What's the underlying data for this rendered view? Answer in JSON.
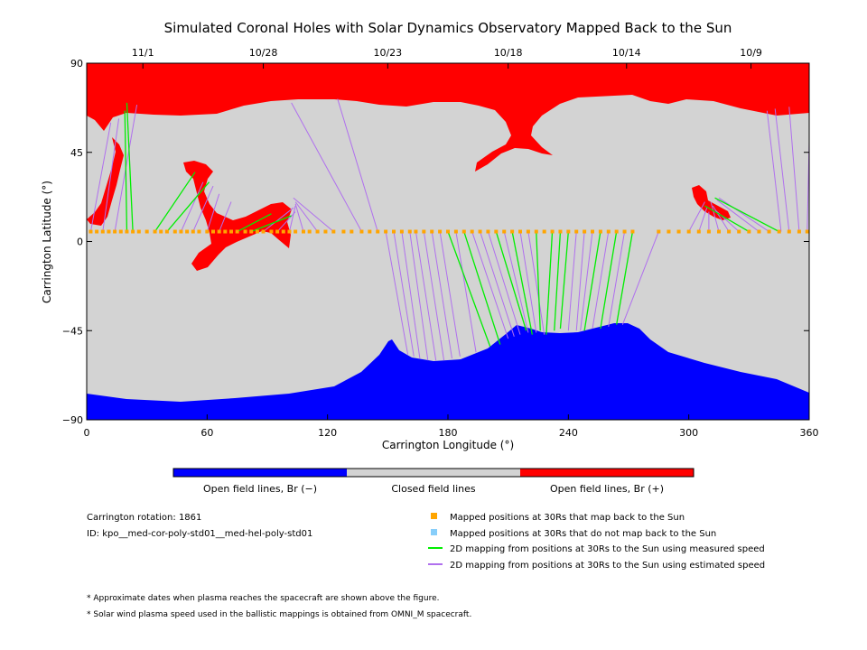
{
  "title": "Simulated Coronal Holes with Solar Dynamics Observatory Mapped Back to the Sun",
  "chart_data": {
    "type": "scatter",
    "title": "Simulated Coronal Holes with Solar Dynamics Observatory Mapped Back to the Sun",
    "xlabel": "Carrington Longitude (°)",
    "ylabel": "Carrington Latitude (°)",
    "xlim": [
      0,
      360
    ],
    "ylim": [
      -90,
      90
    ],
    "x_ticks": [
      0,
      60,
      120,
      180,
      240,
      300,
      360
    ],
    "y_ticks": [
      -90,
      -45,
      0,
      45,
      90
    ],
    "y_tick_labels": [
      "−90",
      "−45",
      "0",
      "45",
      "90"
    ],
    "top_axis_dates": [
      {
        "label": "11/1",
        "lon": 28
      },
      {
        "label": "10/28",
        "lon": 88
      },
      {
        "label": "10/23",
        "lon": 150
      },
      {
        "label": "10/18",
        "lon": 210
      },
      {
        "label": "10/14",
        "lon": 269
      },
      {
        "label": "10/9",
        "lon": 331
      }
    ],
    "colors": {
      "open_negative": "#0000ff",
      "closed": "#d3d3d3",
      "open_positive": "#ff0000",
      "mapped_point": "#ffa500",
      "unmapped_point": "#87cefa",
      "measured_speed_line": "#00ee00",
      "estimated_speed_line": "#b070ee"
    },
    "footprint_lat": 5,
    "footprints_lon": [
      2,
      5,
      8,
      11,
      14,
      17,
      20,
      23,
      26,
      30,
      34,
      37,
      40,
      44,
      47,
      50,
      53,
      56,
      60,
      63,
      66,
      69,
      72,
      75,
      79,
      82,
      85,
      88,
      92,
      95,
      98,
      101,
      104,
      108,
      111,
      115,
      119,
      123,
      128,
      132,
      137,
      141,
      145,
      149,
      153,
      157,
      161,
      164,
      168,
      172,
      176,
      180,
      184,
      188,
      192,
      196,
      200,
      204,
      208,
      212,
      216,
      220,
      224,
      228,
      232,
      236,
      240,
      244,
      248,
      252,
      256,
      260,
      264,
      268,
      272,
      285,
      290,
      295,
      300,
      305,
      310,
      315,
      320,
      325,
      330,
      335,
      340,
      345,
      350,
      355,
      359
    ],
    "mappings_measured": [
      {
        "from": [
          23,
          5
        ],
        "to": [
          20,
          70
        ]
      },
      {
        "from": [
          20,
          5
        ],
        "to": [
          19,
          66
        ]
      },
      {
        "from": [
          34,
          5
        ],
        "to": [
          54,
          35
        ]
      },
      {
        "from": [
          40,
          5
        ],
        "to": [
          61,
          30
        ]
      },
      {
        "from": [
          75,
          5
        ],
        "to": [
          92,
          14
        ]
      },
      {
        "from": [
          82,
          5
        ],
        "to": [
          102,
          13
        ]
      },
      {
        "from": [
          180,
          5
        ],
        "to": [
          201,
          -53
        ]
      },
      {
        "from": [
          188,
          5
        ],
        "to": [
          206,
          -52
        ]
      },
      {
        "from": [
          204,
          5
        ],
        "to": [
          219,
          -45
        ]
      },
      {
        "from": [
          212,
          5
        ],
        "to": [
          222,
          -47
        ]
      },
      {
        "from": [
          224,
          5
        ],
        "to": [
          226,
          -45
        ]
      },
      {
        "from": [
          232,
          5
        ],
        "to": [
          229,
          -47
        ]
      },
      {
        "from": [
          236,
          5
        ],
        "to": [
          233,
          -45
        ]
      },
      {
        "from": [
          240,
          5
        ],
        "to": [
          236,
          -44
        ]
      },
      {
        "from": [
          256,
          5
        ],
        "to": [
          248,
          -45
        ]
      },
      {
        "from": [
          264,
          5
        ],
        "to": [
          256,
          -44
        ]
      },
      {
        "from": [
          272,
          5
        ],
        "to": [
          264,
          -42
        ]
      },
      {
        "from": [
          345,
          5
        ],
        "to": [
          313,
          22
        ]
      },
      {
        "from": [
          330,
          5
        ],
        "to": [
          308,
          18
        ]
      }
    ],
    "mappings_estimated": [
      {
        "from": [
          2,
          5
        ],
        "to": [
          12,
          60
        ]
      },
      {
        "from": [
          8,
          5
        ],
        "to": [
          16,
          62
        ]
      },
      {
        "from": [
          14,
          5
        ],
        "to": [
          25,
          69
        ]
      },
      {
        "from": [
          47,
          5
        ],
        "to": [
          58,
          30
        ]
      },
      {
        "from": [
          53,
          5
        ],
        "to": [
          63,
          28
        ]
      },
      {
        "from": [
          60,
          5
        ],
        "to": [
          66,
          24
        ]
      },
      {
        "from": [
          66,
          5
        ],
        "to": [
          72,
          20
        ]
      },
      {
        "from": [
          88,
          5
        ],
        "to": [
          103,
          17
        ]
      },
      {
        "from": [
          95,
          5
        ],
        "to": [
          104,
          15
        ]
      },
      {
        "from": [
          101,
          5
        ],
        "to": [
          104,
          18
        ]
      },
      {
        "from": [
          108,
          5
        ],
        "to": [
          104,
          19
        ]
      },
      {
        "from": [
          115,
          5
        ],
        "to": [
          104,
          20
        ]
      },
      {
        "from": [
          123,
          5
        ],
        "to": [
          103,
          22
        ]
      },
      {
        "from": [
          137,
          5
        ],
        "to": [
          102,
          70
        ]
      },
      {
        "from": [
          145,
          5
        ],
        "to": [
          125,
          72
        ]
      },
      {
        "from": [
          149,
          5
        ],
        "to": [
          160,
          -57
        ]
      },
      {
        "from": [
          153,
          5
        ],
        "to": [
          163,
          -58
        ]
      },
      {
        "from": [
          157,
          5
        ],
        "to": [
          166,
          -59
        ]
      },
      {
        "from": [
          161,
          5
        ],
        "to": [
          170,
          -60
        ]
      },
      {
        "from": [
          164,
          5
        ],
        "to": [
          174,
          -60
        ]
      },
      {
        "from": [
          168,
          5
        ],
        "to": [
          178,
          -60
        ]
      },
      {
        "from": [
          172,
          5
        ],
        "to": [
          182,
          -59
        ]
      },
      {
        "from": [
          176,
          5
        ],
        "to": [
          186,
          -58
        ]
      },
      {
        "from": [
          184,
          5
        ],
        "to": [
          194,
          -56
        ]
      },
      {
        "from": [
          192,
          5
        ],
        "to": [
          210,
          -49
        ]
      },
      {
        "from": [
          196,
          5
        ],
        "to": [
          213,
          -48
        ]
      },
      {
        "from": [
          200,
          5
        ],
        "to": [
          216,
          -47
        ]
      },
      {
        "from": [
          208,
          5
        ],
        "to": [
          220,
          -46
        ]
      },
      {
        "from": [
          216,
          5
        ],
        "to": [
          224,
          -46
        ]
      },
      {
        "from": [
          220,
          5
        ],
        "to": [
          228,
          -47
        ]
      },
      {
        "from": [
          244,
          5
        ],
        "to": [
          240,
          -45
        ]
      },
      {
        "from": [
          248,
          5
        ],
        "to": [
          244,
          -45
        ]
      },
      {
        "from": [
          252,
          5
        ],
        "to": [
          246,
          -45
        ]
      },
      {
        "from": [
          260,
          5
        ],
        "to": [
          252,
          -44
        ]
      },
      {
        "from": [
          268,
          5
        ],
        "to": [
          260,
          -43
        ]
      },
      {
        "from": [
          285,
          5
        ],
        "to": [
          267,
          -42
        ]
      },
      {
        "from": [
          300,
          5
        ],
        "to": [
          308,
          20
        ]
      },
      {
        "from": [
          305,
          5
        ],
        "to": [
          309,
          17
        ]
      },
      {
        "from": [
          310,
          5
        ],
        "to": [
          310,
          15
        ]
      },
      {
        "from": [
          315,
          5
        ],
        "to": [
          311,
          20
        ]
      },
      {
        "from": [
          320,
          5
        ],
        "to": [
          312,
          18
        ]
      },
      {
        "from": [
          325,
          5
        ],
        "to": [
          313,
          16
        ]
      },
      {
        "from": [
          335,
          5
        ],
        "to": [
          314,
          21
        ]
      },
      {
        "from": [
          340,
          5
        ],
        "to": [
          315,
          22
        ]
      },
      {
        "from": [
          346,
          5
        ],
        "to": [
          339,
          66
        ]
      },
      {
        "from": [
          350,
          5
        ],
        "to": [
          343,
          67
        ]
      },
      {
        "from": [
          355,
          5
        ],
        "to": [
          350,
          68
        ]
      },
      {
        "from": [
          359,
          5
        ],
        "to": [
          360,
          50
        ]
      }
    ],
    "colorbar_labels": [
      "Open field lines, Br (−)",
      "Closed field lines",
      "Open field lines, Br (+)"
    ]
  },
  "info": {
    "rotation": "Carrington rotation: 1861",
    "id": "ID: kpo__med-cor-poly-std01__med-hel-poly-std01"
  },
  "legend": [
    {
      "label": "Mapped positions at 30Rs that map back to the Sun",
      "kind": "square",
      "color": "#ffa500"
    },
    {
      "label": "Mapped positions at 30Rs that do not map back to the Sun",
      "kind": "square",
      "color": "#87cefa"
    },
    {
      "label": "2D mapping from positions at 30Rs to the Sun using measured speed",
      "kind": "line",
      "color": "#00ee00"
    },
    {
      "label": "2D mapping from positions at 30Rs to the Sun using estimated speed",
      "kind": "line",
      "color": "#b070ee"
    }
  ],
  "notes": [
    "* Approximate dates when plasma reaches the spacecraft are shown above the figure.",
    "* Solar wind plasma speed used in the ballistic mappings is obtained from OMNI_M spacecraft."
  ]
}
